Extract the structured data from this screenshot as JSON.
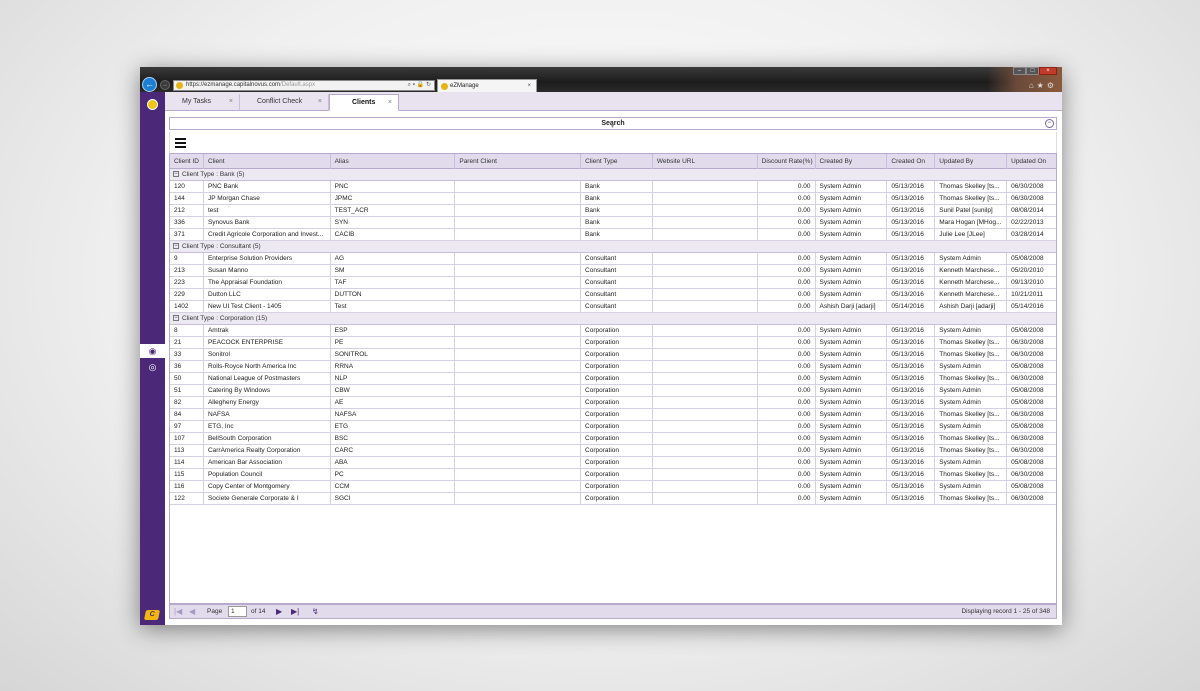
{
  "browser": {
    "url_host": "https://ezmanage.capitalnovus.com",
    "url_path": "/Default.aspx",
    "tab_title": "eZManage",
    "tab_close": "×",
    "icons": [
      "home-icon",
      "star-icon",
      "gear-icon"
    ]
  },
  "app_tabs": [
    {
      "label": "My Tasks",
      "close": "×"
    },
    {
      "label": "Conflict Check",
      "close": "×"
    },
    {
      "label": "Clients",
      "close": "×"
    }
  ],
  "search": {
    "label": "Search",
    "collapse_glyph": "−"
  },
  "columns": [
    "Client ID",
    "Client",
    "Alias",
    "Parent Client",
    "Client Type",
    "Website URL",
    "Discount Rate(%)",
    "Created By",
    "Created On",
    "Updated By",
    "Updated On"
  ],
  "groups": [
    {
      "label": "Client Type : Bank (5)",
      "rows": [
        [
          "120",
          "PNC Bank",
          "PNC",
          "",
          "Bank",
          "",
          "0.00",
          "System Admin",
          "05/13/2016",
          "Thomas Skelley [ts...",
          "06/30/2008"
        ],
        [
          "144",
          "JP Morgan Chase",
          "JPMC",
          "",
          "Bank",
          "",
          "0.00",
          "System Admin",
          "05/13/2016",
          "Thomas Skelley [ts...",
          "06/30/2008"
        ],
        [
          "212",
          "test",
          "TEST_ACR",
          "",
          "Bank",
          "",
          "0.00",
          "System Admin",
          "05/13/2016",
          "Sunil Patel [sunilp]",
          "08/08/2014"
        ],
        [
          "336",
          "Synovus Bank",
          "SYN",
          "",
          "Bank",
          "",
          "0.00",
          "System Admin",
          "05/13/2016",
          "Mara Hogan [MHog...",
          "02/22/2013"
        ],
        [
          "371",
          "Credit Agricole Corporation and Invest...",
          "CACIB",
          "",
          "Bank",
          "",
          "0.00",
          "System Admin",
          "05/13/2016",
          "Julie Lee [JLee]",
          "03/28/2014"
        ]
      ]
    },
    {
      "label": "Client Type : Consultant (5)",
      "rows": [
        [
          "9",
          "Enterprise Solution Providers",
          "AG",
          "",
          "Consultant",
          "",
          "0.00",
          "System Admin",
          "05/13/2016",
          "System Admin",
          "05/08/2008"
        ],
        [
          "213",
          "Susan Manno",
          "SM",
          "",
          "Consultant",
          "",
          "0.00",
          "System Admin",
          "05/13/2016",
          "Kenneth Marchese...",
          "05/20/2010"
        ],
        [
          "223",
          "The Appraisal Foundation",
          "TAF",
          "",
          "Consultant",
          "",
          "0.00",
          "System Admin",
          "05/13/2016",
          "Kenneth Marchese...",
          "09/13/2010"
        ],
        [
          "229",
          "Dutton LLC",
          "DUTTON",
          "",
          "Consultant",
          "",
          "0.00",
          "System Admin",
          "05/13/2016",
          "Kenneth Marchese...",
          "10/21/2011"
        ],
        [
          "1402",
          "New UI Test Client - 1405",
          "Test",
          "",
          "Consultant",
          "",
          "0.00",
          "Ashish Darji [adarji]",
          "05/14/2016",
          "Ashish Darji [adarji]",
          "05/14/2016"
        ]
      ]
    },
    {
      "label": "Client Type : Corporation (15)",
      "rows": [
        [
          "8",
          "Amtrak",
          "ESP",
          "",
          "Corporation",
          "",
          "0.00",
          "System Admin",
          "05/13/2016",
          "System Admin",
          "05/08/2008"
        ],
        [
          "21",
          "PEACOCK ENTERPRISE",
          "PE",
          "",
          "Corporation",
          "",
          "0.00",
          "System Admin",
          "05/13/2016",
          "Thomas Skelley [ts...",
          "06/30/2008"
        ],
        [
          "33",
          "Sonitrol",
          "SONITROL",
          "",
          "Corporation",
          "",
          "0.00",
          "System Admin",
          "05/13/2016",
          "Thomas Skelley [ts...",
          "06/30/2008"
        ],
        [
          "36",
          "Rolls-Royce North America Inc",
          "RRNA",
          "",
          "Corporation",
          "",
          "0.00",
          "System Admin",
          "05/13/2016",
          "System Admin",
          "05/08/2008"
        ],
        [
          "50",
          "National League of Postmasters",
          "NLP",
          "",
          "Corporation",
          "",
          "0.00",
          "System Admin",
          "05/13/2016",
          "Thomas Skelley [ts...",
          "06/30/2008"
        ],
        [
          "51",
          "Catering By Windows",
          "CBW",
          "",
          "Corporation",
          "",
          "0.00",
          "System Admin",
          "05/13/2016",
          "System Admin",
          "05/08/2008"
        ],
        [
          "82",
          "Allegheny Energy",
          "AE",
          "",
          "Corporation",
          "",
          "0.00",
          "System Admin",
          "05/13/2016",
          "System Admin",
          "05/08/2008"
        ],
        [
          "84",
          "NAFSA",
          "NAFSA",
          "",
          "Corporation",
          "",
          "0.00",
          "System Admin",
          "05/13/2016",
          "Thomas Skelley [ts...",
          "06/30/2008"
        ],
        [
          "97",
          "ETG, Inc",
          "ETG",
          "",
          "Corporation",
          "",
          "0.00",
          "System Admin",
          "05/13/2016",
          "System Admin",
          "05/08/2008"
        ],
        [
          "107",
          "BellSouth Corporation",
          "BSC",
          "",
          "Corporation",
          "",
          "0.00",
          "System Admin",
          "05/13/2016",
          "Thomas Skelley [ts...",
          "06/30/2008"
        ],
        [
          "113",
          "CarrAmerica Realty Corporation",
          "CARC",
          "",
          "Corporation",
          "",
          "0.00",
          "System Admin",
          "05/13/2016",
          "Thomas Skelley [ts...",
          "06/30/2008"
        ],
        [
          "114",
          "American Bar Association",
          "ABA",
          "",
          "Corporation",
          "",
          "0.00",
          "System Admin",
          "05/13/2016",
          "System Admin",
          "05/08/2008"
        ],
        [
          "115",
          "Population Council",
          "PC",
          "",
          "Corporation",
          "",
          "0.00",
          "System Admin",
          "05/13/2016",
          "Thomas Skelley [ts...",
          "06/30/2008"
        ],
        [
          "116",
          "Copy Center of Montgomery",
          "CCM",
          "",
          "Corporation",
          "",
          "0.00",
          "System Admin",
          "05/13/2016",
          "System Admin",
          "05/08/2008"
        ],
        [
          "122",
          "Societe Generale Corporate & I",
          "SGCI",
          "",
          "Corporation",
          "",
          "0.00",
          "System Admin",
          "05/13/2016",
          "Thomas Skelley [ts...",
          "06/30/2008"
        ]
      ]
    }
  ],
  "pager": {
    "page_label": "Page",
    "current_page": "1",
    "of_label": "of 14",
    "display_msg": "Displaying record 1 - 25 of 348"
  },
  "colors": {
    "sidebar": "#4b2878",
    "accent": "#f2c416",
    "grid_header": "#e1dbeb"
  }
}
